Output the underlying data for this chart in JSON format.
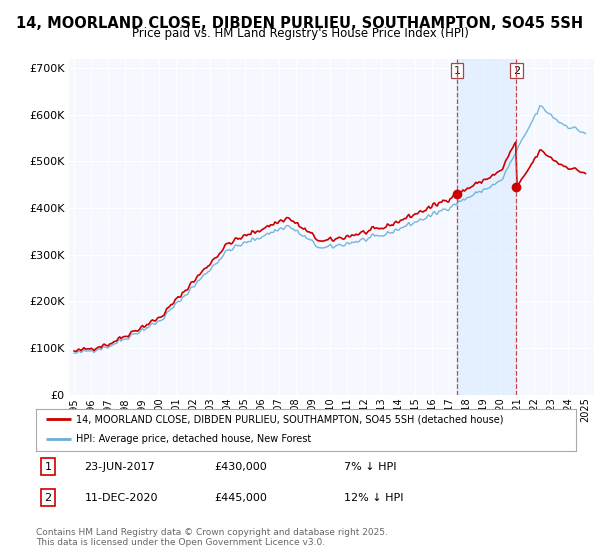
{
  "title": "14, MOORLAND CLOSE, DIBDEN PURLIEU, SOUTHAMPTON, SO45 5SH",
  "subtitle": "Price paid vs. HM Land Registry's House Price Index (HPI)",
  "legend_property": "14, MOORLAND CLOSE, DIBDEN PURLIEU, SOUTHAMPTON, SO45 5SH (detached house)",
  "legend_hpi": "HPI: Average price, detached house, New Forest",
  "annotation1_date": "23-JUN-2017",
  "annotation1_price": "£430,000",
  "annotation1_hpi": "7% ↓ HPI",
  "annotation2_date": "11-DEC-2020",
  "annotation2_price": "£445,000",
  "annotation2_hpi": "12% ↓ HPI",
  "footer": "Contains HM Land Registry data © Crown copyright and database right 2025.\nThis data is licensed under the Open Government Licence v3.0.",
  "property_color": "#cc0000",
  "hpi_color": "#6baed6",
  "shading_color": "#ddeeff",
  "background_color": "#ffffff",
  "plot_bg_color": "#f5f8ff",
  "grid_color": "#d0d8e8",
  "vline1_x": 2017.47,
  "vline2_x": 2020.95,
  "marker1_year": 2017.47,
  "marker1_value": 430000,
  "marker2_year": 2020.95,
  "marker2_value": 445000,
  "ylim": [
    0,
    720000
  ],
  "xlim": [
    1994.7,
    2025.5
  ]
}
